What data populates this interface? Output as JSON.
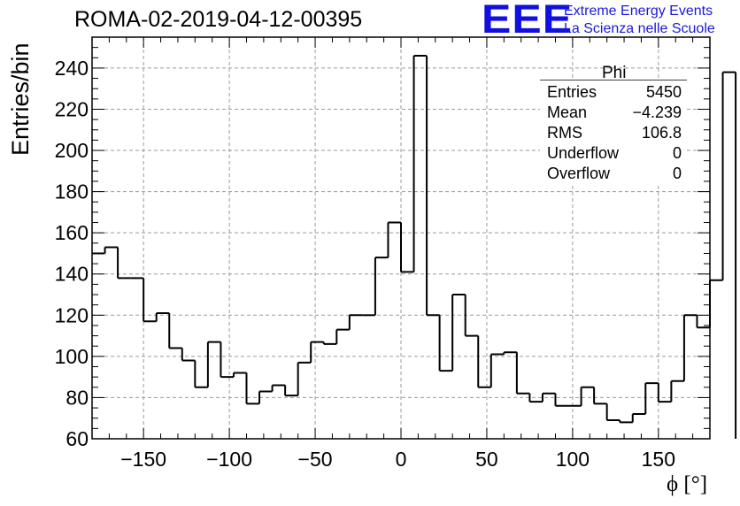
{
  "title": "ROMA-02-2019-04-12-00395",
  "logo": {
    "text": "EEE",
    "line1": "Extreme Energy Events",
    "line2": "La Scienza nelle Scuole",
    "color": "#1a1ad8"
  },
  "stats": {
    "name": "Phi",
    "rows": [
      {
        "label": "Entries",
        "value": "5450"
      },
      {
        "label": "Mean",
        "value": "−4.239"
      },
      {
        "label": "RMS",
        "value": "106.8"
      },
      {
        "label": "Underflow",
        "value": "0"
      },
      {
        "label": "Overflow",
        "value": "0"
      }
    ]
  },
  "chart_data": {
    "type": "bar",
    "style": "step-histogram",
    "title": "ROMA-02-2019-04-12-00395",
    "xlabel": "ϕ [°]",
    "ylabel": "Entries/bin",
    "xlim": [
      -180,
      180
    ],
    "ylim": [
      60,
      255
    ],
    "x_ticks": [
      -150,
      -100,
      -50,
      0,
      50,
      100,
      150
    ],
    "x_tick_labels": [
      "−150",
      "−100",
      "−50",
      "0",
      "50",
      "100",
      "150"
    ],
    "y_ticks": [
      60,
      80,
      100,
      120,
      140,
      160,
      180,
      200,
      220,
      240
    ],
    "grid": true,
    "bin_edges_start": -180,
    "bin_width": 7.5,
    "values": [
      150,
      153,
      138,
      138,
      117,
      121,
      104,
      98,
      85,
      107,
      90,
      92,
      77,
      83,
      86,
      81,
      97,
      107,
      106,
      113,
      120,
      120,
      148,
      165,
      141,
      246,
      120,
      93,
      130,
      110,
      85,
      101,
      102,
      82,
      78,
      82,
      76,
      76,
      85,
      77,
      69,
      68,
      72,
      87,
      78,
      88,
      120,
      114,
      137,
      238
    ],
    "line_color": "#000000"
  }
}
